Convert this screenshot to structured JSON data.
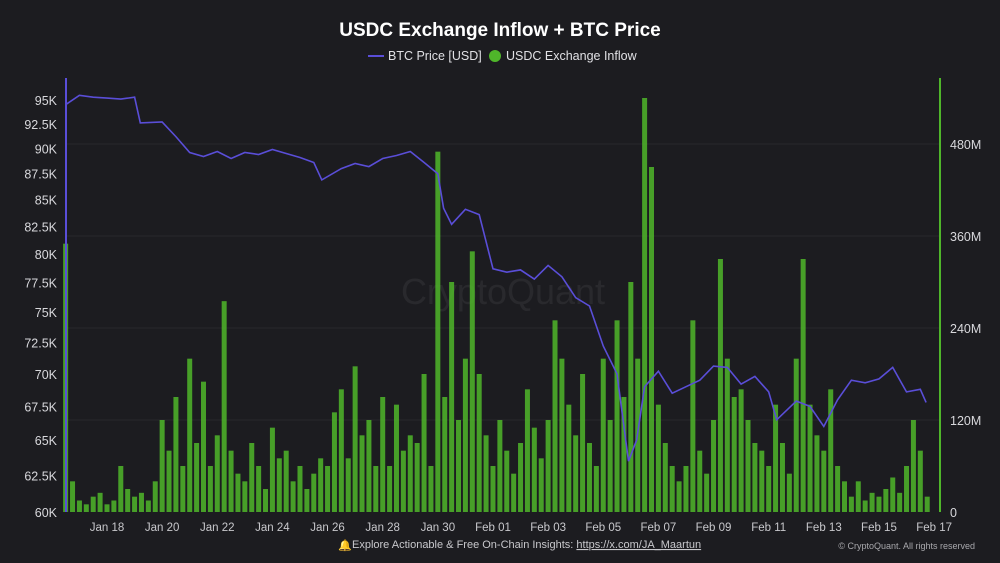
{
  "chart_data": {
    "type": "bar+line",
    "title": "USDC Exchange Inflow + BTC Price",
    "legend": {
      "placement": "top-center",
      "entries": [
        "BTC Price [USD]",
        "USDC Exchange Inflow"
      ]
    },
    "colors": {
      "price": "#5a4ed8",
      "inflow": "#4fb62a",
      "background": "#1c1c20",
      "left_axis": "#5a4ed8",
      "right_axis": "#4fb62a"
    },
    "x_ticks": [
      "Jan 18",
      "Jan 20",
      "Jan 22",
      "Jan 24",
      "Jan 26",
      "Jan 28",
      "Jan 30",
      "Feb 01",
      "Feb 03",
      "Feb 05",
      "Feb 07",
      "Feb 09",
      "Feb 11",
      "Feb 13",
      "Feb 15",
      "Feb 17"
    ],
    "y_left": {
      "scale": "log",
      "range": [
        60000,
        95000
      ],
      "ticks": [
        "95K",
        "92.5K",
        "90K",
        "87.5K",
        "85K",
        "82.5K",
        "80K",
        "77.5K",
        "75K",
        "72.5K",
        "70K",
        "67.5K",
        "65K",
        "62.5K",
        "60K"
      ],
      "tick_values": [
        95000,
        92500,
        90000,
        87500,
        85000,
        82500,
        80000,
        77500,
        75000,
        72500,
        70000,
        67500,
        65000,
        62500,
        60000
      ]
    },
    "y_right": {
      "scale": "linear",
      "range": [
        0,
        555
      ],
      "unit": "M",
      "ticks": [
        "480M",
        "360M",
        "240M",
        "120M",
        "0"
      ],
      "tick_values": [
        480,
        360,
        240,
        120,
        0
      ]
    },
    "grid": true,
    "series": [
      {
        "name": "BTC Price [USD]",
        "type": "line",
        "points": [
          [
            "Jan 16 12:00",
            94500
          ],
          [
            "Jan 17 00:00",
            95500
          ],
          [
            "Jan 17 12:00",
            95300
          ],
          [
            "Jan 18 00:00",
            95200
          ],
          [
            "Jan 18 12:00",
            95100
          ],
          [
            "Jan 19 00:00",
            95300
          ],
          [
            "Jan 19 05:00",
            92600
          ],
          [
            "Jan 20 00:00",
            92700
          ],
          [
            "Jan 20 12:00",
            91200
          ],
          [
            "Jan 21 00:00",
            89600
          ],
          [
            "Jan 21 12:00",
            89200
          ],
          [
            "Jan 22 00:00",
            89700
          ],
          [
            "Jan 22 12:00",
            89000
          ],
          [
            "Jan 23 00:00",
            89600
          ],
          [
            "Jan 23 12:00",
            89400
          ],
          [
            "Jan 24 00:00",
            89900
          ],
          [
            "Jan 24 12:00",
            89500
          ],
          [
            "Jan 25 00:00",
            89100
          ],
          [
            "Jan 25 12:00",
            88600
          ],
          [
            "Jan 25 19:00",
            86900
          ],
          [
            "Jan 26 12:00",
            88000
          ],
          [
            "Jan 27 00:00",
            88500
          ],
          [
            "Jan 27 12:00",
            88200
          ],
          [
            "Jan 28 00:00",
            89000
          ],
          [
            "Jan 28 12:00",
            89300
          ],
          [
            "Jan 29 00:00",
            89700
          ],
          [
            "Jan 29 12:00",
            88600
          ],
          [
            "Jan 30 00:00",
            87500
          ],
          [
            "Jan 30 05:00",
            84200
          ],
          [
            "Jan 30 12:00",
            82700
          ],
          [
            "Jan 31 00:00",
            84100
          ],
          [
            "Jan 31 12:00",
            83600
          ],
          [
            "Feb 01 00:00",
            78700
          ],
          [
            "Feb 01 12:00",
            78400
          ],
          [
            "Feb 02 00:00",
            78600
          ],
          [
            "Feb 02 12:00",
            77800
          ],
          [
            "Feb 03 00:00",
            79000
          ],
          [
            "Feb 03 12:00",
            78000
          ],
          [
            "Feb 04 00:00",
            76200
          ],
          [
            "Feb 04 12:00",
            75500
          ],
          [
            "Feb 05 00:00",
            72200
          ],
          [
            "Feb 05 12:00",
            70000
          ],
          [
            "Feb 05 22:00",
            63500
          ],
          [
            "Feb 06 05:00",
            65000
          ],
          [
            "Feb 06 12:00",
            69000
          ],
          [
            "Feb 07 00:00",
            70200
          ],
          [
            "Feb 07 12:00",
            68500
          ],
          [
            "Feb 08 00:00",
            69000
          ],
          [
            "Feb 08 12:00",
            69500
          ],
          [
            "Feb 09 00:00",
            70600
          ],
          [
            "Feb 09 12:00",
            70500
          ],
          [
            "Feb 10 00:00",
            69200
          ],
          [
            "Feb 10 12:00",
            69800
          ],
          [
            "Feb 11 00:00",
            68600
          ],
          [
            "Feb 11 07:00",
            66500
          ],
          [
            "Feb 12 00:00",
            67900
          ],
          [
            "Feb 12 12:00",
            67500
          ],
          [
            "Feb 13 00:00",
            66000
          ],
          [
            "Feb 13 12:00",
            68000
          ],
          [
            "Feb 14 00:00",
            69500
          ],
          [
            "Feb 14 12:00",
            69300
          ],
          [
            "Feb 15 00:00",
            69600
          ],
          [
            "Feb 15 12:00",
            70500
          ],
          [
            "Feb 16 00:00",
            68600
          ],
          [
            "Feb 16 12:00",
            68800
          ],
          [
            "Feb 16 17:00",
            67800
          ]
        ]
      },
      {
        "name": "USDC Exchange Inflow",
        "type": "bar",
        "unit": "M USD",
        "points": [
          [
            "Jan 16 12:00",
            350
          ],
          [
            "Jan 16 18:00",
            40
          ],
          [
            "Jan 17 00:00",
            15
          ],
          [
            "Jan 17 06:00",
            10
          ],
          [
            "Jan 17 12:00",
            20
          ],
          [
            "Jan 17 18:00",
            25
          ],
          [
            "Jan 18 00:00",
            10
          ],
          [
            "Jan 18 06:00",
            15
          ],
          [
            "Jan 18 12:00",
            60
          ],
          [
            "Jan 18 18:00",
            30
          ],
          [
            "Jan 19 00:00",
            20
          ],
          [
            "Jan 19 06:00",
            25
          ],
          [
            "Jan 19 12:00",
            15
          ],
          [
            "Jan 19 18:00",
            40
          ],
          [
            "Jan 20 00:00",
            120
          ],
          [
            "Jan 20 06:00",
            80
          ],
          [
            "Jan 20 12:00",
            150
          ],
          [
            "Jan 20 18:00",
            60
          ],
          [
            "Jan 21 00:00",
            200
          ],
          [
            "Jan 21 06:00",
            90
          ],
          [
            "Jan 21 12:00",
            170
          ],
          [
            "Jan 21 18:00",
            60
          ],
          [
            "Jan 22 00:00",
            100
          ],
          [
            "Jan 22 06:00",
            275
          ],
          [
            "Jan 22 12:00",
            80
          ],
          [
            "Jan 22 18:00",
            50
          ],
          [
            "Jan 23 00:00",
            40
          ],
          [
            "Jan 23 06:00",
            90
          ],
          [
            "Jan 23 12:00",
            60
          ],
          [
            "Jan 23 18:00",
            30
          ],
          [
            "Jan 24 00:00",
            110
          ],
          [
            "Jan 24 06:00",
            70
          ],
          [
            "Jan 24 12:00",
            80
          ],
          [
            "Jan 24 18:00",
            40
          ],
          [
            "Jan 25 00:00",
            60
          ],
          [
            "Jan 25 06:00",
            30
          ],
          [
            "Jan 25 12:00",
            50
          ],
          [
            "Jan 25 18:00",
            70
          ],
          [
            "Jan 26 00:00",
            60
          ],
          [
            "Jan 26 06:00",
            130
          ],
          [
            "Jan 26 12:00",
            160
          ],
          [
            "Jan 26 18:00",
            70
          ],
          [
            "Jan 27 00:00",
            190
          ],
          [
            "Jan 27 06:00",
            100
          ],
          [
            "Jan 27 12:00",
            120
          ],
          [
            "Jan 27 18:00",
            60
          ],
          [
            "Jan 28 00:00",
            150
          ],
          [
            "Jan 28 06:00",
            60
          ],
          [
            "Jan 28 12:00",
            140
          ],
          [
            "Jan 28 18:00",
            80
          ],
          [
            "Jan 29 00:00",
            100
          ],
          [
            "Jan 29 06:00",
            90
          ],
          [
            "Jan 29 12:00",
            180
          ],
          [
            "Jan 29 18:00",
            60
          ],
          [
            "Jan 30 00:00",
            470
          ],
          [
            "Jan 30 06:00",
            150
          ],
          [
            "Jan 30 12:00",
            300
          ],
          [
            "Jan 30 18:00",
            120
          ],
          [
            "Jan 31 00:00",
            200
          ],
          [
            "Jan 31 06:00",
            340
          ],
          [
            "Jan 31 12:00",
            180
          ],
          [
            "Jan 31 18:00",
            100
          ],
          [
            "Feb 01 00:00",
            60
          ],
          [
            "Feb 01 06:00",
            120
          ],
          [
            "Feb 01 12:00",
            80
          ],
          [
            "Feb 01 18:00",
            50
          ],
          [
            "Feb 02 00:00",
            90
          ],
          [
            "Feb 02 06:00",
            160
          ],
          [
            "Feb 02 12:00",
            110
          ],
          [
            "Feb 02 18:00",
            70
          ],
          [
            "Feb 03 00:00",
            120
          ],
          [
            "Feb 03 06:00",
            250
          ],
          [
            "Feb 03 12:00",
            200
          ],
          [
            "Feb 03 18:00",
            140
          ],
          [
            "Feb 04 00:00",
            100
          ],
          [
            "Feb 04 06:00",
            180
          ],
          [
            "Feb 04 12:00",
            90
          ],
          [
            "Feb 04 18:00",
            60
          ],
          [
            "Feb 05 00:00",
            200
          ],
          [
            "Feb 05 06:00",
            120
          ],
          [
            "Feb 05 12:00",
            250
          ],
          [
            "Feb 05 18:00",
            150
          ],
          [
            "Feb 06 00:00",
            300
          ],
          [
            "Feb 06 06:00",
            200
          ],
          [
            "Feb 06 12:00",
            540
          ],
          [
            "Feb 06 18:00",
            450
          ],
          [
            "Feb 07 00:00",
            140
          ],
          [
            "Feb 07 06:00",
            90
          ],
          [
            "Feb 07 12:00",
            60
          ],
          [
            "Feb 07 18:00",
            40
          ],
          [
            "Feb 08 00:00",
            60
          ],
          [
            "Feb 08 06:00",
            250
          ],
          [
            "Feb 08 12:00",
            80
          ],
          [
            "Feb 08 18:00",
            50
          ],
          [
            "Feb 09 00:00",
            120
          ],
          [
            "Feb 09 06:00",
            330
          ],
          [
            "Feb 09 12:00",
            200
          ],
          [
            "Feb 09 18:00",
            150
          ],
          [
            "Feb 10 00:00",
            160
          ],
          [
            "Feb 10 06:00",
            120
          ],
          [
            "Feb 10 12:00",
            90
          ],
          [
            "Feb 10 18:00",
            80
          ],
          [
            "Feb 11 00:00",
            60
          ],
          [
            "Feb 11 06:00",
            140
          ],
          [
            "Feb 11 12:00",
            90
          ],
          [
            "Feb 11 18:00",
            50
          ],
          [
            "Feb 12 00:00",
            200
          ],
          [
            "Feb 12 06:00",
            330
          ],
          [
            "Feb 12 12:00",
            140
          ],
          [
            "Feb 12 18:00",
            100
          ],
          [
            "Feb 13 00:00",
            80
          ],
          [
            "Feb 13 06:00",
            160
          ],
          [
            "Feb 13 12:00",
            60
          ],
          [
            "Feb 13 18:00",
            40
          ],
          [
            "Feb 14 00:00",
            20
          ],
          [
            "Feb 14 06:00",
            40
          ],
          [
            "Feb 14 12:00",
            15
          ],
          [
            "Feb 14 18:00",
            25
          ],
          [
            "Feb 15 00:00",
            20
          ],
          [
            "Feb 15 06:00",
            30
          ],
          [
            "Feb 15 12:00",
            45
          ],
          [
            "Feb 15 18:00",
            25
          ],
          [
            "Feb 16 00:00",
            60
          ],
          [
            "Feb 16 06:00",
            120
          ],
          [
            "Feb 16 12:00",
            80
          ],
          [
            "Feb 16 18:00",
            20
          ]
        ]
      }
    ]
  },
  "watermark": "CryptoQuant",
  "footer": {
    "bell_icon": "bell-icon",
    "promo_text": "Explore Actionable & Free On-Chain Insights: ",
    "promo_link": "https://x.com/JA_Maartun",
    "copyright": "© CryptoQuant. All rights reserved"
  }
}
